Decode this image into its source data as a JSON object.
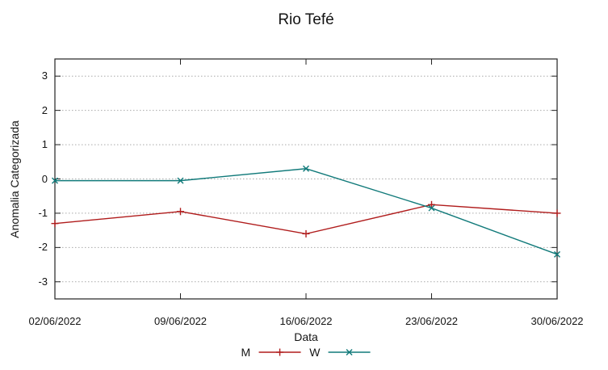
{
  "title": "Rio Tefé",
  "chart_data": {
    "type": "line",
    "title": "Rio Tefé",
    "xlabel": "Data",
    "ylabel": "Anomalia Categorizada",
    "categories": [
      "02/06/2022",
      "09/06/2022",
      "16/06/2022",
      "23/06/2022",
      "30/06/2022"
    ],
    "series": [
      {
        "name": "M",
        "color": "#b01c1c",
        "marker": "plus",
        "values": [
          -1.3,
          -0.95,
          -1.6,
          -0.75,
          -1.0
        ]
      },
      {
        "name": "W",
        "color": "#117a7a",
        "marker": "cross",
        "values": [
          -0.05,
          -0.05,
          0.3,
          -0.85,
          -2.2
        ]
      }
    ],
    "ylim": [
      -3.5,
      3.5
    ],
    "yticks": [
      3,
      2,
      1,
      0,
      -1,
      -2,
      -3
    ],
    "grid": true,
    "legend_position": "bottom-center"
  }
}
